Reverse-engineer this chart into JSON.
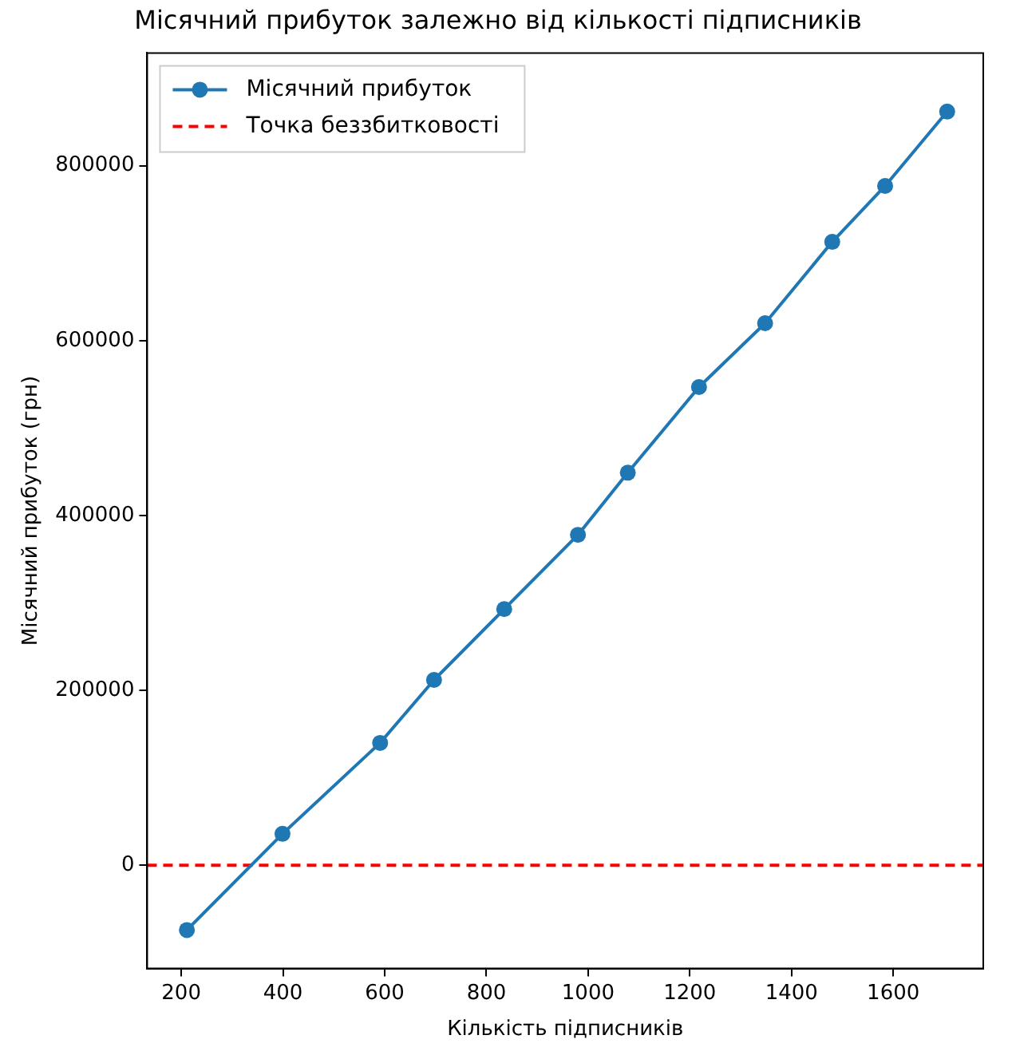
{
  "chart_data": {
    "type": "line",
    "title": "Місячний прибуток залежно від кількості підписників",
    "xlabel": "Кількість підписників",
    "ylabel": "Місячний прибуток (грн)",
    "x": [
      211,
      399,
      591,
      697,
      835,
      980,
      1078,
      1218,
      1348,
      1480,
      1584,
      1706
    ],
    "series": [
      {
        "name": "Місячний прибуток",
        "color": "#1f77b4",
        "values": [
          -74000,
          36000,
          140000,
          212000,
          293000,
          378000,
          449000,
          547000,
          620000,
          713000,
          777000,
          862000
        ]
      }
    ],
    "ref_lines": [
      {
        "axis": "y",
        "value": 0,
        "label": "Точка беззбитковості",
        "color": "#ff0000",
        "line_style": "dashed"
      }
    ],
    "xlim": [
      133,
      1777
    ],
    "ylim": [
      -118000,
      929000
    ],
    "xticks": [
      200,
      400,
      600,
      800,
      1000,
      1200,
      1400,
      1600
    ],
    "yticks": [
      0,
      200000,
      400000,
      600000,
      800000
    ],
    "marker": "circle",
    "line_style": "solid",
    "grid": false,
    "legend": "top left"
  }
}
